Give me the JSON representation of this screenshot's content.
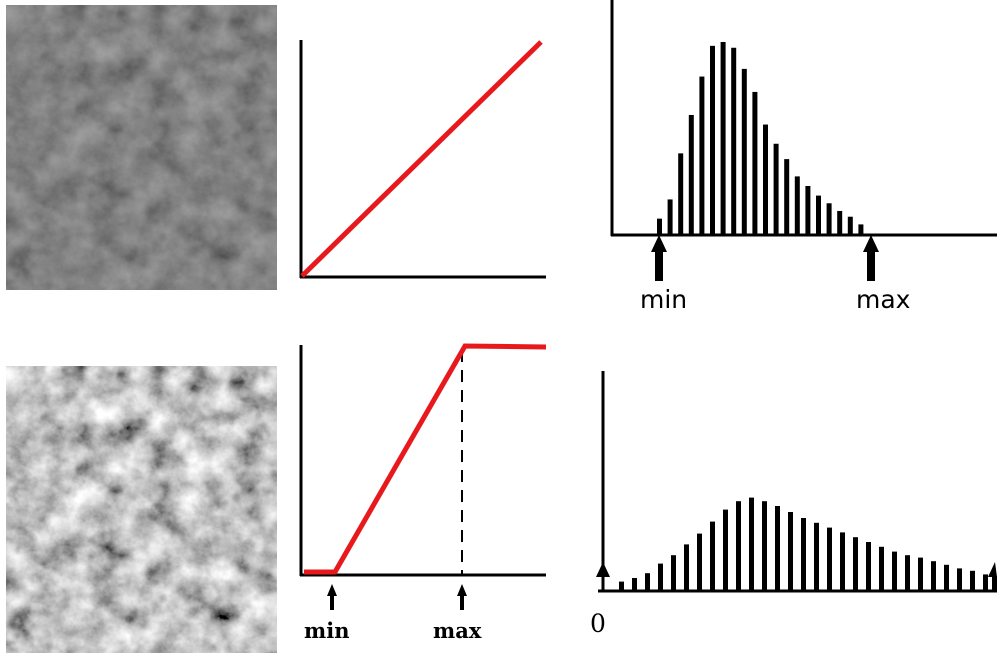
{
  "top_row": {
    "mapping": {
      "type": "identity",
      "color": "#e8191d"
    },
    "histogram": {
      "bars": [
        0.08,
        0.18,
        0.42,
        0.62,
        0.82,
        0.98,
        1.0,
        0.97,
        0.86,
        0.74,
        0.57,
        0.47,
        0.39,
        0.3,
        0.25,
        0.2,
        0.16,
        0.12,
        0.09,
        0.05
      ],
      "min_label": "min",
      "max_label": "max"
    }
  },
  "bottom_row": {
    "mapping": {
      "type": "linear-stretch",
      "color": "#e8191d",
      "min_label": "min",
      "max_label": "max"
    },
    "histogram": {
      "bars": [
        0.07,
        0.1,
        0.14,
        0.22,
        0.29,
        0.38,
        0.47,
        0.57,
        0.67,
        0.74,
        0.77,
        0.74,
        0.7,
        0.65,
        0.6,
        0.56,
        0.52,
        0.48,
        0.44,
        0.4,
        0.36,
        0.32,
        0.29,
        0.27,
        0.24,
        0.21,
        0.18,
        0.16,
        0.13,
        0.1
      ],
      "zero_label": "0"
    }
  }
}
